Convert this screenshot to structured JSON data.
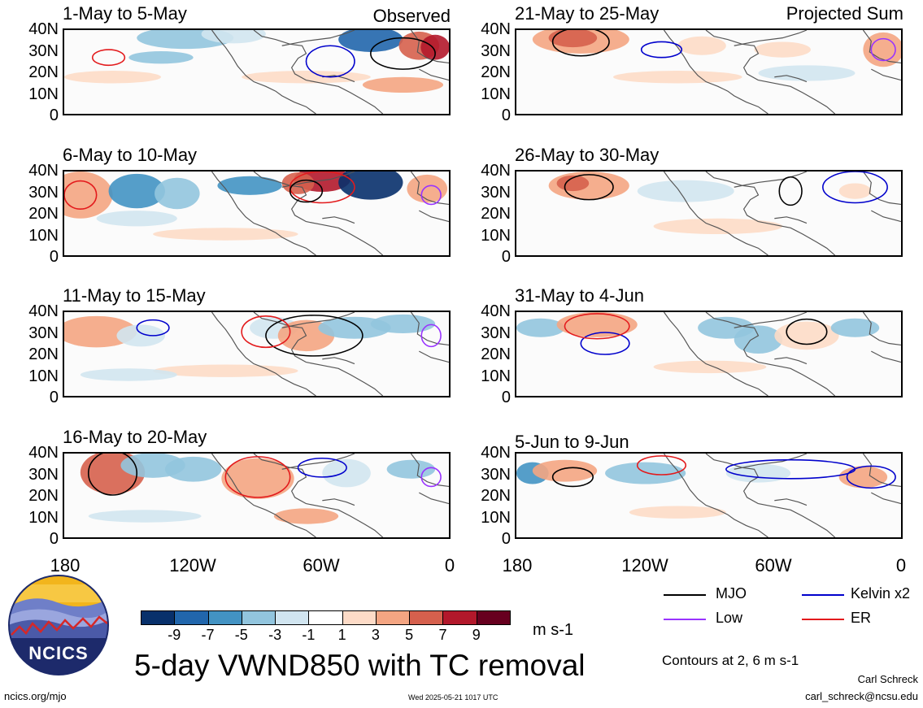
{
  "panels": [
    {
      "id": "p1",
      "title": "1-May to 5-May",
      "label": "Observed"
    },
    {
      "id": "p2",
      "title": "21-May to 25-May",
      "label": "Projected Sum"
    },
    {
      "id": "p3",
      "title": "6-May to 10-May",
      "label": ""
    },
    {
      "id": "p4",
      "title": "26-May to 30-May",
      "label": ""
    },
    {
      "id": "p5",
      "title": "11-May to 15-May",
      "label": ""
    },
    {
      "id": "p6",
      "title": "31-May to 4-Jun",
      "label": ""
    },
    {
      "id": "p7",
      "title": "16-May to 20-May",
      "label": ""
    },
    {
      "id": "p8",
      "title": "5-Jun to 9-Jun",
      "label": ""
    }
  ],
  "lat_labels": [
    "40N",
    "30N",
    "20N",
    "10N",
    "0"
  ],
  "lon_labels": [
    "180",
    "120W",
    "60W",
    "0"
  ],
  "colorbar": {
    "colors": [
      "#08306b",
      "#2166ac",
      "#4393c3",
      "#92c5de",
      "#d1e5f0",
      "#ffffff",
      "#fddbc7",
      "#f4a582",
      "#d6604d",
      "#b2182b",
      "#67001f"
    ],
    "ticks": [
      "-9",
      "-7",
      "-5",
      "-3",
      "-1",
      "1",
      "3",
      "5",
      "7",
      "9"
    ],
    "units": "m s-1"
  },
  "legend": {
    "items": [
      {
        "label": "MJO",
        "color": "#000000"
      },
      {
        "label": "Kelvin x2",
        "color": "#0000cc"
      },
      {
        "label": "Low",
        "color": "#9933ff"
      },
      {
        "label": "ER",
        "color": "#e31a1c"
      }
    ],
    "contours_note": "Contours at 2, 6 m s-1"
  },
  "main_title": "5-day VWND850 with TC removal",
  "logo_text": "NCICS",
  "footer": {
    "left": "ncics.org/mjo",
    "center": "Wed 2025-05-21 1017 UTC",
    "author": "Carl Schreck",
    "email": "carl_schreck@ncsu.edu"
  }
}
